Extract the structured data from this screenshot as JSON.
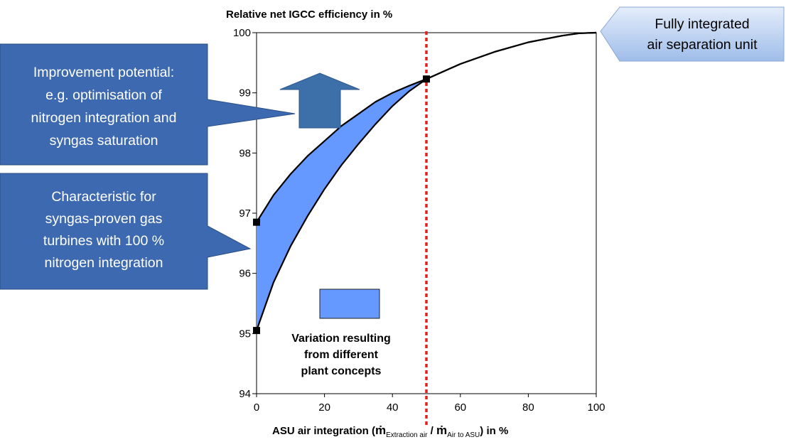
{
  "chart_data": {
    "type": "line",
    "ylabel": "Relative net IGCC efficiency in %",
    "xlabel": {
      "prefix": "ASU air integration (",
      "num": "m",
      "num_sub": "Extraction air",
      "sep": " / ",
      "den": "m",
      "den_sub": "Air to ASU",
      "suffix": ") in %"
    },
    "xlim": [
      0,
      100
    ],
    "ylim": [
      94,
      100
    ],
    "xticks": [
      "0",
      "20",
      "40",
      "60",
      "80",
      "100"
    ],
    "yticks": [
      "94",
      "95",
      "96",
      "97",
      "98",
      "99",
      "100"
    ],
    "grid": false,
    "series": [
      {
        "role": "upper",
        "color": "#000000",
        "x": [
          0,
          5,
          10,
          15,
          20,
          25,
          30,
          35,
          40,
          45,
          50,
          60,
          70,
          80,
          90,
          95,
          100
        ],
        "y": [
          96.85,
          97.3,
          97.65,
          97.95,
          98.2,
          98.45,
          98.65,
          98.85,
          99.0,
          99.12,
          99.23,
          99.48,
          99.68,
          99.84,
          99.95,
          99.99,
          100.0
        ]
      },
      {
        "role": "lower",
        "color": "#000000",
        "x": [
          0,
          5,
          10,
          15,
          20,
          25,
          30,
          35,
          40,
          45,
          50,
          60,
          70,
          80,
          90,
          95,
          100
        ],
        "y": [
          95.05,
          95.85,
          96.45,
          96.95,
          97.4,
          97.8,
          98.15,
          98.48,
          98.78,
          99.03,
          99.23,
          99.48,
          99.68,
          99.84,
          99.95,
          99.99,
          100.0
        ]
      }
    ],
    "variation_fill_color": "#6699ff",
    "markers": [
      {
        "x": 0,
        "y": 96.85
      },
      {
        "x": 0,
        "y": 95.05
      },
      {
        "x": 50,
        "y": 99.23
      }
    ],
    "reference_line": {
      "x": 50,
      "color": "#dd2222",
      "style": "dotted"
    },
    "legend": {
      "text": [
        "Variation resulting",
        "from different",
        "plant concepts"
      ],
      "color": "#6699ff"
    },
    "callouts": [
      {
        "id": "improvement",
        "text": [
          "Improvement potential:",
          "e.g. optimisation of",
          "nitrogen integration and",
          "syngas saturation"
        ],
        "color": "#3d69b0"
      },
      {
        "id": "characteristic",
        "text": [
          "Characteristic for",
          "syngas-proven gas",
          "turbines with 100 %",
          "nitrogen integration"
        ],
        "color": "#3d69b0"
      }
    ],
    "tag": {
      "text": [
        "Fully integrated",
        "air separation unit"
      ],
      "color": "#bcd2f2"
    },
    "arrow": {
      "direction": "up",
      "color": "#3d6fa8"
    }
  }
}
